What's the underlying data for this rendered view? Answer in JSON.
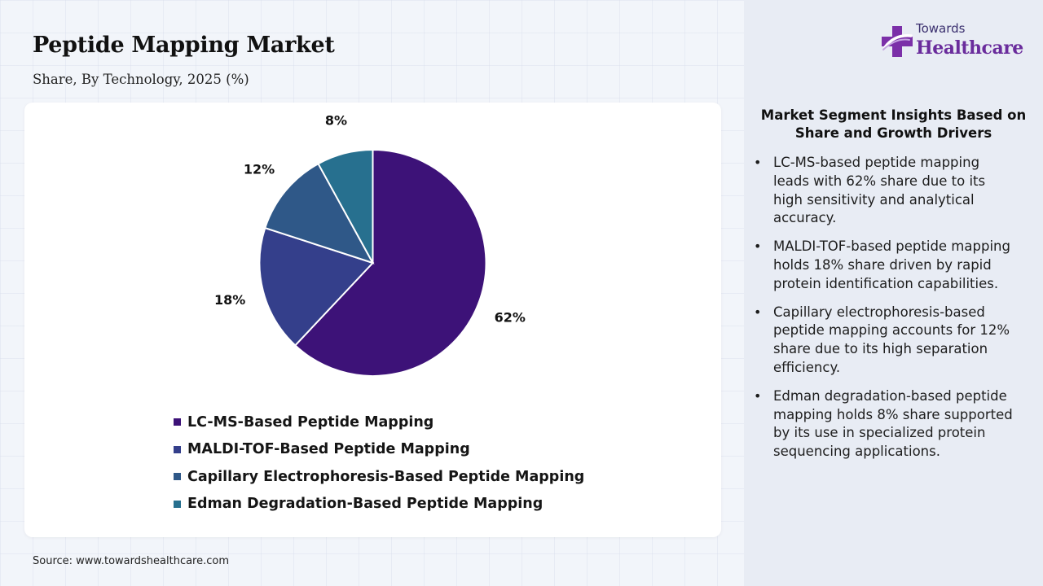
{
  "header": {
    "title": "Peptide Mapping Market",
    "subtitle": "Share, By Technology, 2025 (%)"
  },
  "brand": {
    "top": "Towards",
    "main": "Healthcare"
  },
  "chart_data": {
    "type": "pie",
    "categories": [
      "LC-MS-Based Peptide Mapping",
      "MALDI-TOF-Based Peptide Mapping",
      "Capillary Electrophoresis-Based Peptide Mapping",
      "Edman Degradation-Based Peptide Mapping"
    ],
    "values": [
      62,
      18,
      12,
      8
    ],
    "data_labels": [
      "62%",
      "18%",
      "12%",
      "8%"
    ],
    "colors": [
      "#3d1278",
      "#343f8b",
      "#2f5888",
      "#27708f"
    ],
    "legend_position": "bottom",
    "start_angle": "12 o'clock",
    "direction": "clockwise"
  },
  "insights": {
    "title": "Market Segment Insights Based on Share and Growth Drivers",
    "items": [
      "LC-MS-based peptide mapping leads with 62% share due to its high sensitivity and analytical accuracy.",
      "MALDI-TOF-based peptide mapping holds 18% share driven by rapid protein identification capabilities.",
      "Capillary electrophoresis-based peptide mapping accounts for 12% share due to its high separation efficiency.",
      "Edman degradation-based peptide mapping holds 8% share supported by its use in specialized protein sequencing applications."
    ]
  },
  "footer": {
    "source": "Source: www.towardshealthcare.com"
  }
}
